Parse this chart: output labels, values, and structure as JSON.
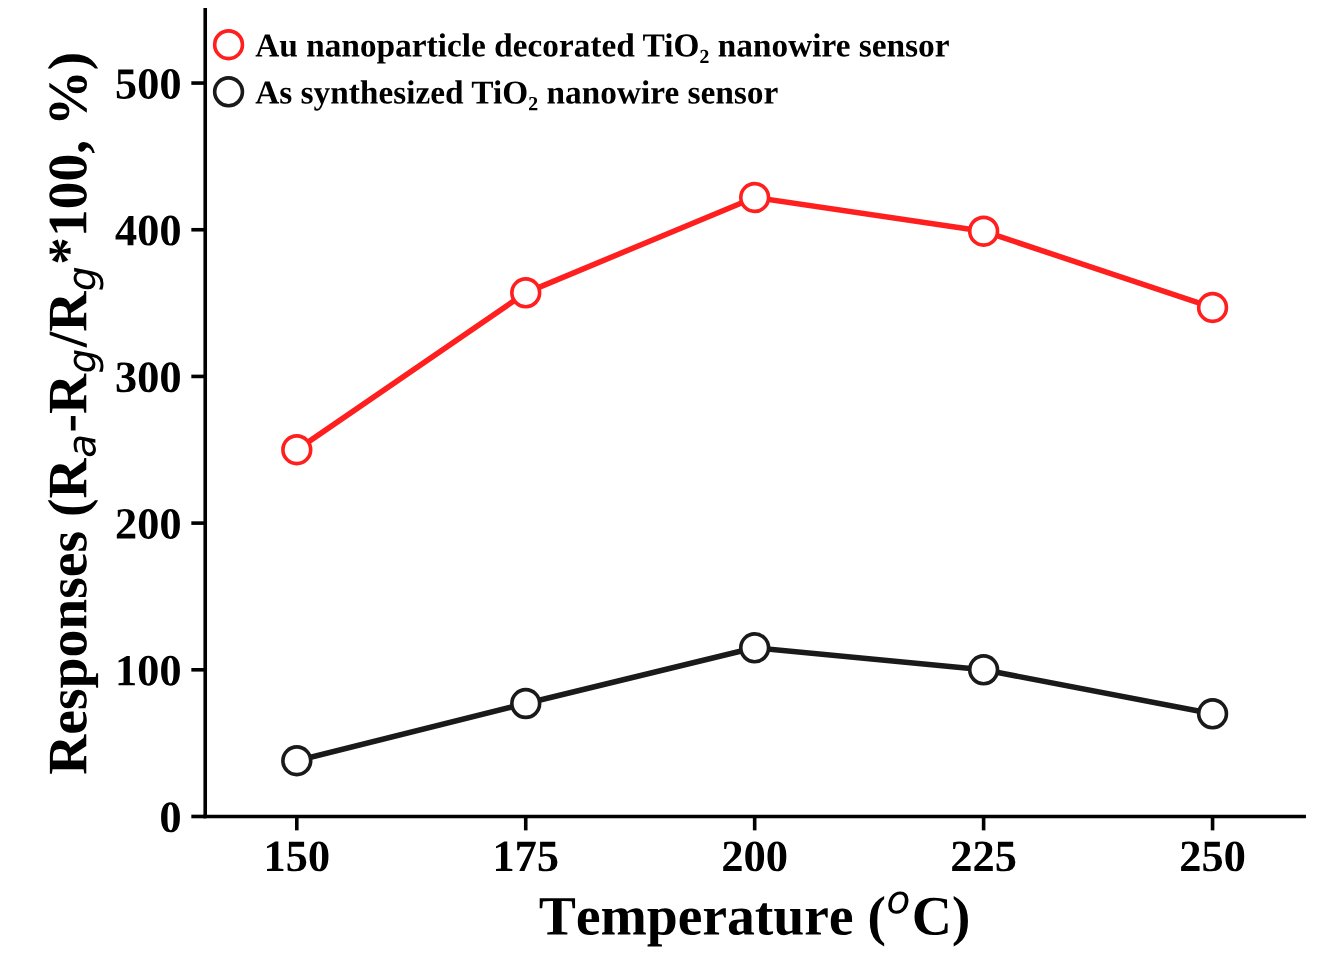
{
  "chart_data": {
    "type": "line",
    "xlabel": "Temperature ($^{o}$C)",
    "ylabel": "Responses (R$_{a}$-R$_{g}$/R$_{g}$*100, %)",
    "x": [
      150,
      175,
      200,
      225,
      250
    ],
    "series": [
      {
        "name": "Au nanoparticle decorated TiO₂ nanowire sensor",
        "color": "#ff1f1f",
        "values": [
          250,
          357,
          422,
          399,
          347
        ]
      },
      {
        "name": "As synthesized TiO₂ nanowire sensor",
        "color": "#1a1a1a",
        "values": [
          38,
          77,
          115,
          100,
          70
        ]
      }
    ],
    "xlim": [
      140,
      260
    ],
    "xticks": [
      150,
      175,
      200,
      225,
      250
    ],
    "ylim": [
      0,
      550
    ],
    "yticks": [
      0,
      100,
      200,
      300,
      400,
      500
    ],
    "marker": "circle",
    "line_style": "solid",
    "legend": "top left",
    "grid": false
  }
}
